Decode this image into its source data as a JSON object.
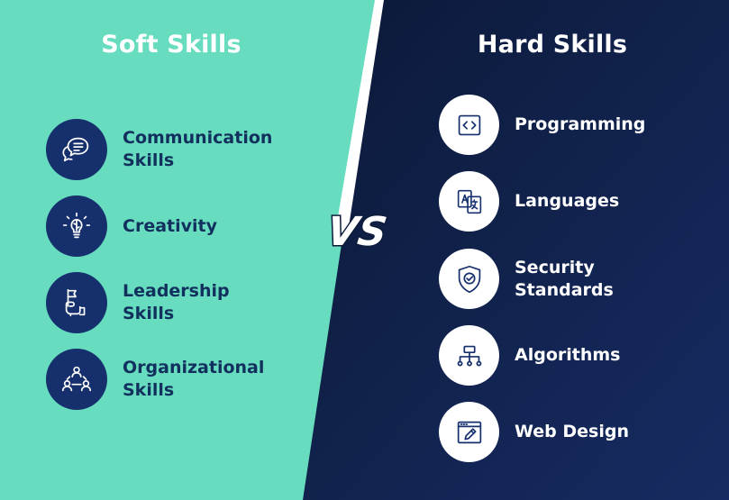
{
  "colors": {
    "soft_bg": "#67dcbf",
    "hard_bg_start": "#0c1a3a",
    "hard_bg_end": "#16295f",
    "soft_icon_circle": "#15306c",
    "soft_text": "#12305d",
    "hard_icon_circle": "#ffffff",
    "hard_icon_stroke": "#15306c",
    "divider_stripe": "#ffffff"
  },
  "soft": {
    "title": "Soft Skills",
    "items": [
      {
        "label": "Communication\nSkills",
        "icon": "chat-bubbles-icon"
      },
      {
        "label": "Creativity",
        "icon": "lightbulb-brain-icon"
      },
      {
        "label": "Leadership\nSkills",
        "icon": "hand-flag-icon"
      },
      {
        "label": "Organizational\nSkills",
        "icon": "team-network-icon"
      }
    ]
  },
  "hard": {
    "title": "Hard Skills",
    "items": [
      {
        "label": "Programming",
        "icon": "code-brackets-icon"
      },
      {
        "label": "Languages",
        "icon": "translate-icon"
      },
      {
        "label": "Security\nStandards",
        "icon": "shield-check-icon"
      },
      {
        "label": "Algorithms",
        "icon": "flowchart-icon"
      },
      {
        "label": "Web Design",
        "icon": "browser-pencil-icon"
      }
    ]
  },
  "vs": {
    "text": "VS"
  }
}
